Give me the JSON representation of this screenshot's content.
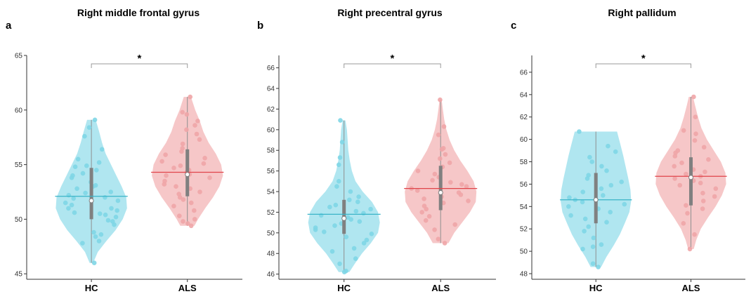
{
  "chart_data": [
    {
      "type": "violin",
      "panel_letter": "a",
      "title": "Right middle frontal gyrus",
      "categories": [
        "HC",
        "ALS"
      ],
      "ylim": [
        44.5,
        65
      ],
      "yticks": [
        45,
        50,
        55,
        60,
        65
      ],
      "significance": "*",
      "groups": [
        {
          "name": "HC",
          "color": "#7fd6e6",
          "line_color": "#39b3c7",
          "mean": 52.1,
          "median": 51.7,
          "q1": 50.0,
          "q3": 54.7,
          "min": 46.0,
          "max": 59.1,
          "density": [
            [
              46.0,
              0.05
            ],
            [
              47.0,
              0.18
            ],
            [
              48.0,
              0.42
            ],
            [
              49.0,
              0.68
            ],
            [
              50.0,
              0.88
            ],
            [
              51.0,
              1.0
            ],
            [
              52.0,
              0.98
            ],
            [
              53.0,
              0.85
            ],
            [
              54.0,
              0.7
            ],
            [
              55.0,
              0.55
            ],
            [
              56.0,
              0.4
            ],
            [
              57.0,
              0.3
            ],
            [
              58.0,
              0.22
            ],
            [
              59.1,
              0.12
            ]
          ],
          "points": [
            46.0,
            47.8,
            48.0,
            48.4,
            48.6,
            48.8,
            49.5,
            49.8,
            49.9,
            50.2,
            50.4,
            50.5,
            50.6,
            50.8,
            51.0,
            51.0,
            51.3,
            51.5,
            51.7,
            51.9,
            52.0,
            52.2,
            52.4,
            52.5,
            52.8,
            53.0,
            53.1,
            53.4,
            53.8,
            54.0,
            54.2,
            54.5,
            54.8,
            54.9,
            55.2,
            55.5,
            56.4,
            57.6,
            58.4,
            59.1
          ]
        },
        {
          "name": "ALS",
          "color": "#f0a5a7",
          "line_color": "#e0444a",
          "mean": 54.3,
          "median": 54.1,
          "q1": 52.1,
          "q3": 56.4,
          "min": 49.4,
          "max": 61.2,
          "density": [
            [
              49.4,
              0.2
            ],
            [
              50.0,
              0.3
            ],
            [
              51.0,
              0.5
            ],
            [
              52.0,
              0.72
            ],
            [
              53.0,
              0.9
            ],
            [
              54.0,
              1.0
            ],
            [
              55.0,
              0.95
            ],
            [
              56.0,
              0.8
            ],
            [
              57.0,
              0.6
            ],
            [
              58.0,
              0.45
            ],
            [
              59.0,
              0.35
            ],
            [
              60.0,
              0.22
            ],
            [
              61.2,
              0.1
            ]
          ],
          "points": [
            49.4,
            49.6,
            49.8,
            50.0,
            50.3,
            50.8,
            51.2,
            51.5,
            51.8,
            52.0,
            52.3,
            52.5,
            52.8,
            53.0,
            53.2,
            53.5,
            53.8,
            54.0,
            54.1,
            54.3,
            54.5,
            54.7,
            54.9,
            55.1,
            55.3,
            55.6,
            55.9,
            56.2,
            56.5,
            56.9,
            57.3,
            57.8,
            58.2,
            58.6,
            59.0,
            59.6,
            59.8,
            61.2
          ]
        }
      ]
    },
    {
      "type": "violin",
      "panel_letter": "b",
      "title": "Right precentral gyrus",
      "categories": [
        "HC",
        "ALS"
      ],
      "ylim": [
        45.5,
        67.2
      ],
      "yticks": [
        46,
        48,
        50,
        52,
        54,
        56,
        58,
        60,
        62,
        64,
        66
      ],
      "significance": "*",
      "groups": [
        {
          "name": "HC",
          "color": "#7fd6e6",
          "line_color": "#39b3c7",
          "mean": 51.8,
          "median": 51.4,
          "q1": 49.9,
          "q3": 53.2,
          "min": 46.2,
          "max": 60.9,
          "density": [
            [
              46.2,
              0.15
            ],
            [
              47.0,
              0.3
            ],
            [
              48.0,
              0.5
            ],
            [
              49.0,
              0.75
            ],
            [
              50.0,
              0.95
            ],
            [
              51.0,
              1.0
            ],
            [
              52.0,
              0.95
            ],
            [
              53.0,
              0.78
            ],
            [
              54.0,
              0.52
            ],
            [
              55.0,
              0.32
            ],
            [
              56.0,
              0.22
            ],
            [
              57.0,
              0.16
            ],
            [
              58.0,
              0.12
            ],
            [
              59.0,
              0.1
            ],
            [
              60.0,
              0.08
            ],
            [
              60.9,
              0.04
            ]
          ],
          "points": [
            46.2,
            46.3,
            47.0,
            47.5,
            48.2,
            48.5,
            49.0,
            49.3,
            49.6,
            49.9,
            50.1,
            50.3,
            50.5,
            50.7,
            50.9,
            51.1,
            51.3,
            51.5,
            51.7,
            51.9,
            52.1,
            52.3,
            52.5,
            52.7,
            53.0,
            53.2,
            53.5,
            54.0,
            54.5,
            55.0,
            56.6,
            57.3,
            58.8,
            60.9
          ]
        },
        {
          "name": "ALS",
          "color": "#f0a5a7",
          "line_color": "#e0444a",
          "mean": 54.3,
          "median": 53.9,
          "q1": 52.2,
          "q3": 56.5,
          "min": 49.0,
          "max": 62.9,
          "density": [
            [
              49.0,
              0.22
            ],
            [
              50.0,
              0.38
            ],
            [
              51.0,
              0.6
            ],
            [
              52.0,
              0.82
            ],
            [
              53.0,
              0.98
            ],
            [
              54.0,
              1.0
            ],
            [
              55.0,
              0.92
            ],
            [
              56.0,
              0.75
            ],
            [
              57.0,
              0.55
            ],
            [
              58.0,
              0.38
            ],
            [
              59.0,
              0.25
            ],
            [
              60.0,
              0.16
            ],
            [
              61.0,
              0.1
            ],
            [
              62.0,
              0.06
            ],
            [
              62.9,
              0.03
            ]
          ],
          "points": [
            49.0,
            49.4,
            50.3,
            50.8,
            51.2,
            51.6,
            52.0,
            52.3,
            52.6,
            52.9,
            53.1,
            53.3,
            53.5,
            53.7,
            53.9,
            54.1,
            54.3,
            54.5,
            54.7,
            54.9,
            55.1,
            55.4,
            55.7,
            56.0,
            56.4,
            56.8,
            57.2,
            57.6,
            58.1,
            58.2,
            59.5,
            60.3,
            62.9
          ]
        }
      ]
    },
    {
      "type": "violin",
      "panel_letter": "c",
      "title": "Right pallidum",
      "categories": [
        "HC",
        "ALS"
      ],
      "ylim": [
        47.5,
        67.5
      ],
      "yticks": [
        48,
        50,
        52,
        54,
        56,
        58,
        60,
        62,
        64,
        66
      ],
      "significance": "*",
      "groups": [
        {
          "name": "HC",
          "color": "#7fd6e6",
          "line_color": "#39b3c7",
          "mean": 54.6,
          "median": 54.6,
          "q1": 52.5,
          "q3": 57.0,
          "min": 48.6,
          "max": 60.7,
          "density": [
            [
              48.6,
              0.15
            ],
            [
              49.5,
              0.3
            ],
            [
              50.5,
              0.5
            ],
            [
              51.5,
              0.68
            ],
            [
              52.5,
              0.82
            ],
            [
              53.5,
              0.95
            ],
            [
              54.5,
              1.0
            ],
            [
              55.5,
              0.98
            ],
            [
              56.5,
              0.92
            ],
            [
              57.5,
              0.85
            ],
            [
              58.5,
              0.78
            ],
            [
              59.5,
              0.7
            ],
            [
              60.7,
              0.6
            ]
          ],
          "points": [
            48.6,
            48.9,
            50.2,
            50.4,
            50.6,
            51.2,
            51.8,
            52.2,
            52.6,
            52.9,
            53.2,
            53.5,
            53.8,
            54.0,
            54.2,
            54.4,
            54.6,
            54.8,
            55.0,
            55.3,
            55.6,
            55.9,
            56.2,
            56.5,
            56.8,
            57.2,
            57.6,
            58.0,
            58.4,
            58.9,
            59.4,
            60.7
          ]
        },
        {
          "name": "ALS",
          "color": "#f0a5a7",
          "line_color": "#e0444a",
          "mean": 56.7,
          "median": 56.6,
          "q1": 54.1,
          "q3": 58.4,
          "min": 50.2,
          "max": 63.8,
          "density": [
            [
              50.2,
              0.08
            ],
            [
              51.0,
              0.15
            ],
            [
              52.0,
              0.28
            ],
            [
              53.0,
              0.48
            ],
            [
              54.0,
              0.7
            ],
            [
              55.0,
              0.88
            ],
            [
              56.0,
              1.0
            ],
            [
              57.0,
              0.98
            ],
            [
              58.0,
              0.85
            ],
            [
              59.0,
              0.65
            ],
            [
              60.0,
              0.45
            ],
            [
              61.0,
              0.3
            ],
            [
              62.0,
              0.2
            ],
            [
              63.0,
              0.12
            ],
            [
              63.8,
              0.06
            ]
          ],
          "points": [
            50.2,
            51.5,
            52.5,
            53.4,
            53.8,
            54.1,
            54.5,
            54.9,
            55.2,
            55.6,
            55.9,
            56.1,
            56.3,
            56.5,
            56.7,
            56.9,
            57.1,
            57.3,
            57.6,
            57.9,
            58.2,
            58.5,
            58.8,
            59.0,
            59.3,
            59.9,
            60.5,
            60.8,
            62.0,
            63.8
          ]
        }
      ]
    }
  ]
}
